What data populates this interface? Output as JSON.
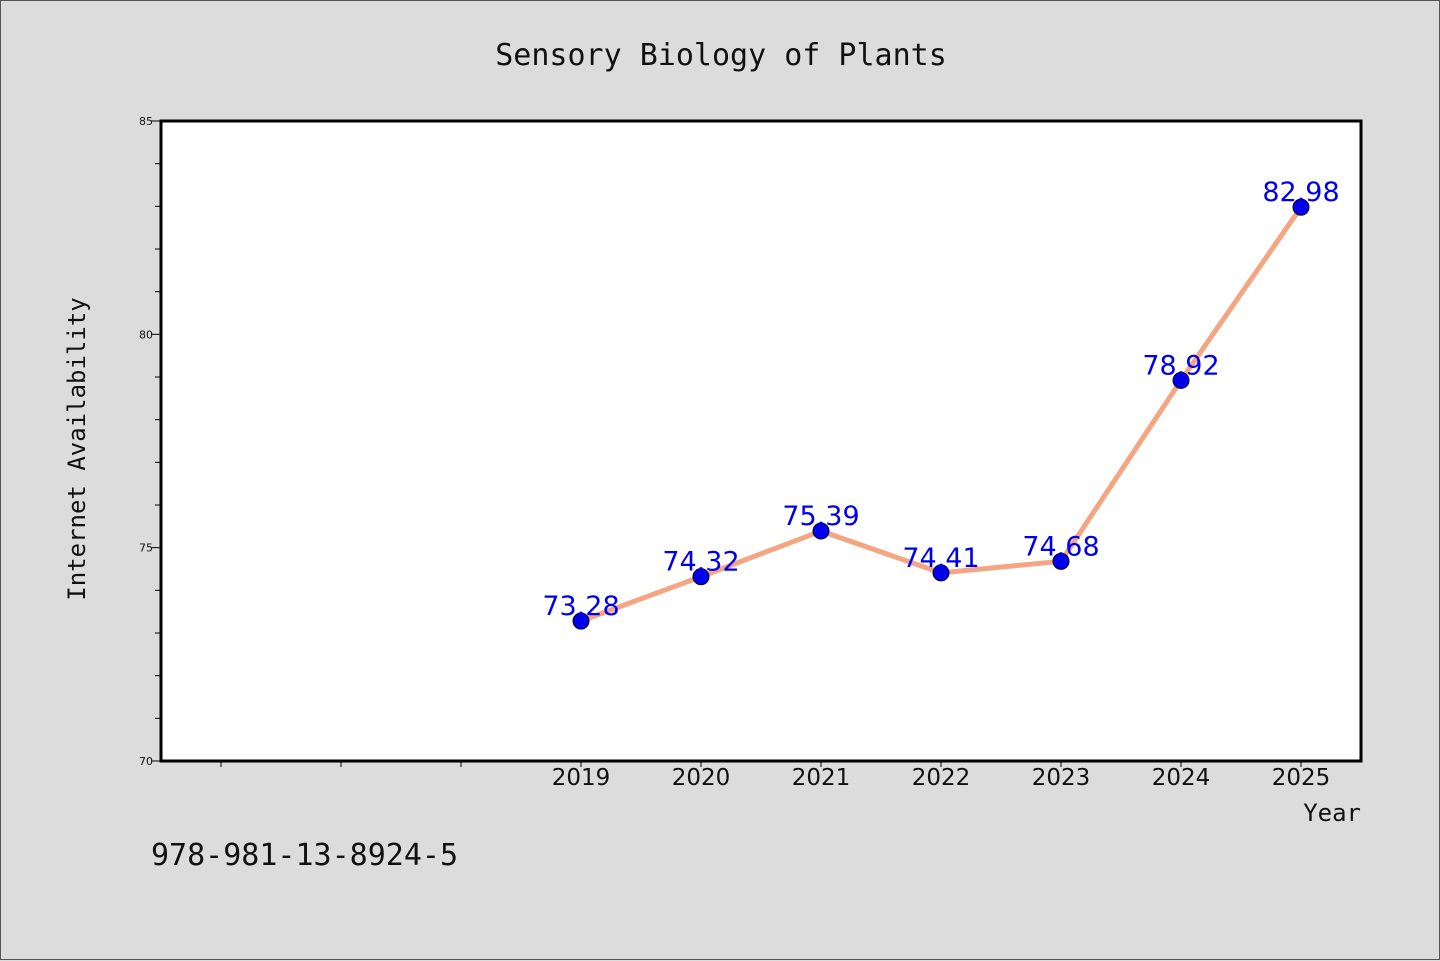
{
  "chart_data": {
    "type": "line",
    "title": "Sensory Biology of Plants",
    "xlabel": "Year",
    "ylabel": "Internet Availability",
    "x": [
      "2019",
      "2020",
      "2021",
      "2022",
      "2023",
      "2024",
      "2025"
    ],
    "series": [
      {
        "values": [
          73.28,
          74.32,
          75.39,
          74.41,
          74.68,
          78.92,
          82.98
        ],
        "data_labels": [
          "73.28",
          "74.32",
          "75.39",
          "74.41",
          "74.68",
          "78.92",
          "82.98"
        ],
        "line_color": "#f4a582",
        "marker_color": "#0000ee"
      }
    ],
    "ylim": [
      70,
      85
    ],
    "yticks": [
      "70",
      "75",
      "80",
      "85"
    ],
    "grid": false,
    "legend": "none",
    "data_label_color": "#0000ee"
  },
  "annotation": {
    "isbn": "978-981-13-8924-5"
  }
}
